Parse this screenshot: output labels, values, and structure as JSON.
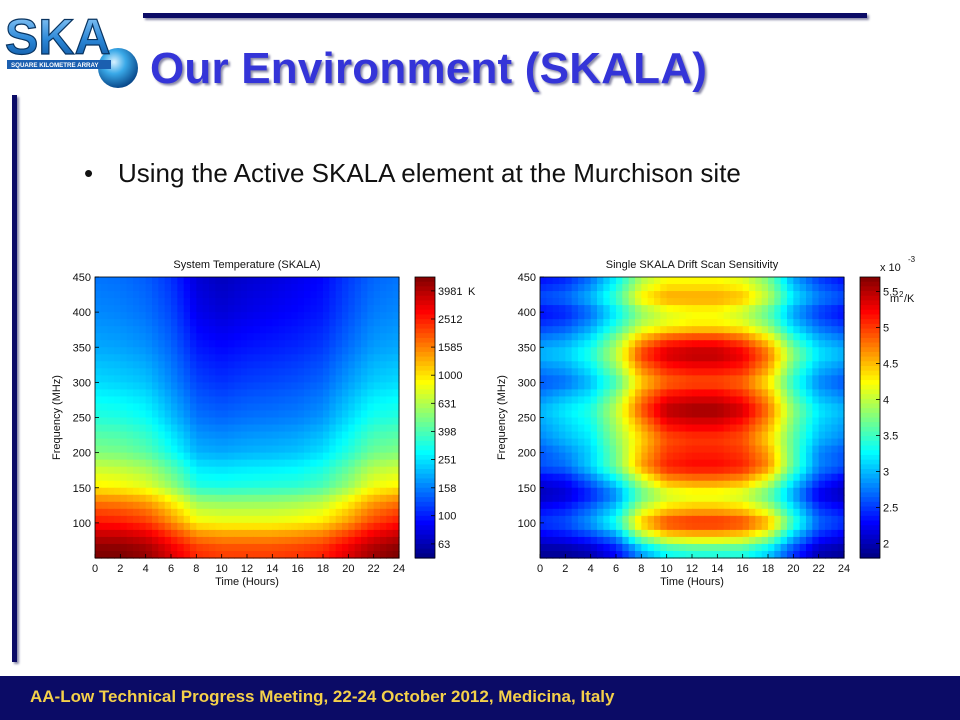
{
  "logo": {
    "text": "SKA",
    "subtext": "SQUARE KILOMETRE ARRAY"
  },
  "slide": {
    "title": "Our Environment (SKALA)"
  },
  "bullets": [
    "Using the Active SKALA element at the Murchison site"
  ],
  "footer": {
    "text": "AA-Low Technical Progress Meeting, 22-24 October 2012, Medicina, Italy"
  },
  "colors": {
    "rule": "#0b0b66",
    "title": "#3434d8",
    "footer_bg": "#0b0b66",
    "footer_text": "#f4d04a"
  },
  "chart_data": [
    {
      "type": "heatmap",
      "title": "System Temperature (SKALA)",
      "xlabel": "Time (Hours)",
      "ylabel": "Frequency (MHz)",
      "xlim": [
        0,
        24
      ],
      "ylim": [
        50,
        450
      ],
      "x_ticks": [
        "0",
        "2",
        "4",
        "6",
        "8",
        "10",
        "12",
        "14",
        "16",
        "18",
        "20",
        "22",
        "24"
      ],
      "y_ticks": [
        "100",
        "150",
        "200",
        "250",
        "300",
        "350",
        "400",
        "450"
      ],
      "colorbar": {
        "unit": "K",
        "scale": "log",
        "ticks": [
          "63",
          "100",
          "158",
          "251",
          "398",
          "631",
          "1000",
          "1585",
          "2512",
          "3981"
        ],
        "range": [
          50,
          5000
        ]
      },
      "x": [
        0,
        2,
        4,
        6,
        8,
        10,
        12,
        14,
        16,
        18,
        20,
        22,
        24
      ],
      "y": [
        60,
        100,
        150,
        200,
        250,
        300,
        350,
        400,
        450
      ],
      "z": [
        [
          5000,
          5000,
          4500,
          3200,
          2300,
          2100,
          2100,
          2100,
          2200,
          2400,
          3200,
          4300,
          5000
        ],
        [
          2600,
          2500,
          2200,
          1500,
          900,
          850,
          850,
          850,
          900,
          1000,
          1400,
          2100,
          2600
        ],
        [
          950,
          900,
          800,
          560,
          330,
          320,
          330,
          340,
          350,
          400,
          560,
          850,
          950
        ],
        [
          500,
          480,
          420,
          300,
          200,
          190,
          200,
          205,
          215,
          245,
          330,
          460,
          500
        ],
        [
          330,
          320,
          290,
          210,
          150,
          140,
          148,
          152,
          158,
          175,
          235,
          310,
          330
        ],
        [
          240,
          230,
          215,
          165,
          120,
          110,
          118,
          122,
          128,
          140,
          180,
          225,
          240
        ],
        [
          190,
          185,
          172,
          140,
          98,
          90,
          96,
          100,
          105,
          115,
          145,
          180,
          190
        ],
        [
          165,
          160,
          148,
          122,
          82,
          74,
          80,
          85,
          90,
          98,
          125,
          155,
          165
        ],
        [
          150,
          146,
          135,
          110,
          74,
          66,
          72,
          76,
          82,
          90,
          115,
          140,
          150
        ]
      ]
    },
    {
      "type": "heatmap",
      "title": "Single SKALA Drift Scan Sensitivity",
      "xlabel": "Time (Hours)",
      "ylabel": "Frequency (MHz)",
      "xlim": [
        0,
        24
      ],
      "ylim": [
        50,
        450
      ],
      "x_ticks": [
        "0",
        "2",
        "4",
        "6",
        "8",
        "10",
        "12",
        "14",
        "16",
        "18",
        "20",
        "22",
        "24"
      ],
      "y_ticks": [
        "100",
        "150",
        "200",
        "250",
        "300",
        "350",
        "400",
        "450"
      ],
      "colorbar": {
        "multiplier": "x 10",
        "exponent": "-3",
        "unit_base": "m",
        "unit_exp": "2",
        "unit_suffix": "/K",
        "scale": "linear",
        "ticks": [
          "2",
          "2.5",
          "3",
          "3.5",
          "4",
          "4.5",
          "5",
          "5.5"
        ],
        "tick_values": [
          2,
          2.5,
          3,
          3.5,
          4,
          4.5,
          5,
          5.5
        ],
        "range": [
          1.8,
          5.7
        ]
      },
      "x": [
        0,
        2,
        4,
        6,
        8,
        10,
        12,
        14,
        16,
        18,
        20,
        22,
        24
      ],
      "y": [
        60,
        80,
        100,
        120,
        140,
        160,
        180,
        200,
        220,
        240,
        260,
        280,
        300,
        320,
        340,
        360,
        380,
        400,
        420,
        440,
        450
      ],
      "z": [
        [
          1.9,
          1.9,
          2.0,
          2.3,
          2.9,
          3.3,
          3.4,
          3.4,
          3.4,
          3.1,
          2.5,
          2.0,
          1.9
        ],
        [
          2.2,
          2.3,
          2.5,
          2.8,
          3.8,
          4.3,
          4.4,
          4.4,
          4.3,
          3.9,
          3.0,
          2.4,
          2.2
        ],
        [
          2.5,
          2.6,
          2.9,
          3.4,
          4.5,
          5.0,
          5.1,
          5.1,
          5.0,
          4.6,
          3.5,
          2.7,
          2.5
        ],
        [
          2.3,
          2.4,
          2.7,
          3.1,
          4.0,
          4.4,
          4.5,
          4.5,
          4.4,
          4.0,
          3.2,
          2.5,
          2.3
        ],
        [
          2.0,
          2.1,
          2.4,
          2.8,
          3.6,
          4.0,
          4.1,
          4.1,
          4.0,
          3.6,
          2.9,
          2.2,
          2.0
        ],
        [
          2.2,
          2.3,
          2.7,
          3.2,
          4.0,
          4.6,
          4.7,
          4.7,
          4.6,
          4.1,
          3.2,
          2.5,
          2.2
        ],
        [
          2.6,
          2.7,
          3.1,
          3.7,
          4.6,
          5.1,
          5.2,
          5.2,
          5.1,
          4.7,
          3.6,
          2.8,
          2.6
        ],
        [
          2.6,
          2.8,
          3.1,
          3.7,
          4.5,
          5.0,
          5.1,
          5.1,
          5.0,
          4.6,
          3.6,
          2.8,
          2.6
        ],
        [
          2.8,
          3.0,
          3.2,
          3.8,
          4.4,
          4.9,
          5.0,
          5.0,
          4.9,
          4.4,
          3.6,
          3.0,
          2.8
        ],
        [
          2.9,
          3.1,
          3.3,
          3.9,
          4.6,
          5.2,
          5.3,
          5.3,
          5.1,
          4.6,
          3.7,
          3.1,
          2.9
        ],
        [
          3.0,
          3.2,
          3.4,
          4.0,
          4.9,
          5.5,
          5.6,
          5.6,
          5.4,
          4.8,
          3.8,
          3.2,
          3.0
        ],
        [
          2.8,
          3.0,
          3.2,
          3.8,
          4.7,
          5.2,
          5.3,
          5.3,
          5.1,
          4.6,
          3.6,
          3.0,
          2.8
        ],
        [
          2.6,
          2.7,
          3.0,
          3.5,
          4.4,
          4.8,
          4.9,
          4.9,
          4.8,
          4.3,
          3.4,
          2.8,
          2.6
        ],
        [
          2.8,
          2.9,
          3.2,
          3.8,
          4.7,
          5.1,
          5.2,
          5.2,
          5.1,
          4.6,
          3.6,
          3.0,
          2.8
        ],
        [
          3.0,
          3.1,
          3.4,
          4.0,
          5.0,
          5.4,
          5.5,
          5.5,
          5.3,
          4.8,
          3.8,
          3.2,
          3.0
        ],
        [
          2.8,
          2.9,
          3.2,
          3.8,
          4.6,
          5.0,
          5.1,
          5.1,
          4.9,
          4.4,
          3.5,
          3.0,
          2.8
        ],
        [
          2.5,
          2.6,
          2.9,
          3.4,
          4.0,
          4.2,
          4.3,
          4.3,
          4.2,
          3.8,
          3.1,
          2.7,
          2.5
        ],
        [
          2.3,
          2.4,
          2.7,
          3.2,
          3.8,
          4.1,
          4.2,
          4.2,
          4.0,
          3.6,
          2.9,
          2.5,
          2.3
        ],
        [
          2.6,
          2.7,
          3.0,
          3.5,
          4.3,
          4.6,
          4.6,
          4.6,
          4.5,
          4.0,
          3.2,
          2.8,
          2.6
        ],
        [
          2.4,
          2.5,
          2.8,
          3.3,
          4.0,
          4.3,
          4.3,
          4.3,
          4.2,
          3.8,
          3.0,
          2.6,
          2.4
        ],
        [
          2.3,
          2.4,
          2.7,
          3.2,
          3.9,
          4.2,
          4.2,
          4.2,
          4.1,
          3.7,
          2.9,
          2.5,
          2.3
        ]
      ]
    }
  ]
}
